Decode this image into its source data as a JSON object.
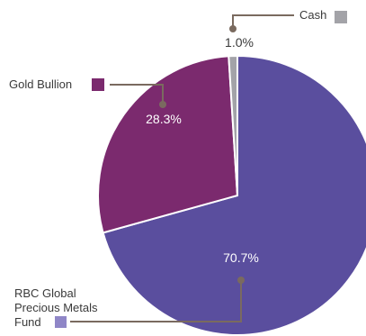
{
  "chart_data": {
    "type": "pie",
    "slices": [
      {
        "label": "RBC Global Precious Metals Fund",
        "label_lines": [
          "RBC Global",
          "Precious Metals",
          "Fund"
        ],
        "value": 70.7,
        "value_label": "70.7%",
        "color": "#5A4E9E",
        "legend_color": "#8F86C7"
      },
      {
        "label": "Gold Bullion",
        "label_lines": [
          "Gold Bullion"
        ],
        "value": 28.3,
        "value_label": "28.3%",
        "color": "#7B2A6E",
        "legend_color": "#7B2A6E"
      },
      {
        "label": "Cash",
        "label_lines": [
          "Cash"
        ],
        "value": 1.0,
        "value_label": "1.0%",
        "color": "#A3A3A8",
        "legend_color": "#A3A3A8"
      }
    ],
    "leader_color": "#7A6A5F"
  }
}
